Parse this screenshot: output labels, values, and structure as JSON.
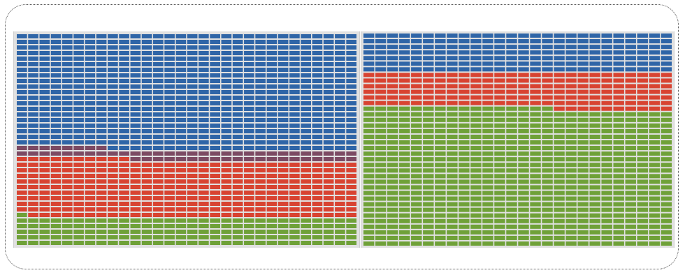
{
  "chart_data": [
    {
      "type": "waffle",
      "columns": 30,
      "rows": 38,
      "series": [
        {
          "key": "blue",
          "color": "#2f65a7",
          "count": 622
        },
        {
          "key": "mixed",
          "color": "#7c4a63",
          "count": 58
        },
        {
          "key": "red",
          "color": "#d84331",
          "count": 309
        },
        {
          "key": "green",
          "color": "#6fa138",
          "count": 151
        }
      ]
    },
    {
      "type": "waffle",
      "columns": 26,
      "rows": 38,
      "series": [
        {
          "key": "blue",
          "color": "#2f65a7",
          "count": 182
        },
        {
          "key": "red",
          "color": "#d84331",
          "count": 166
        },
        {
          "key": "green",
          "color": "#6fa138",
          "count": 640
        }
      ]
    }
  ]
}
